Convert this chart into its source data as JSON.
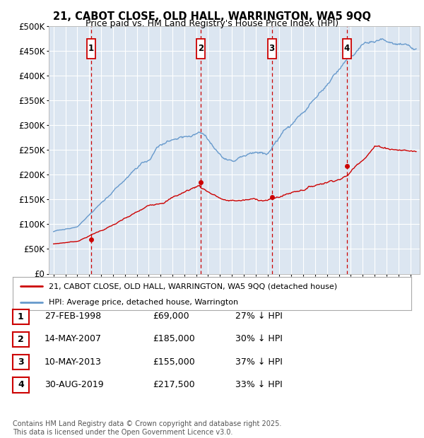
{
  "title": "21, CABOT CLOSE, OLD HALL, WARRINGTON, WA5 9QQ",
  "subtitle": "Price paid vs. HM Land Registry's House Price Index (HPI)",
  "plot_bg_color": "#dce6f1",
  "ylim": [
    0,
    500000
  ],
  "yticks": [
    0,
    50000,
    100000,
    150000,
    200000,
    250000,
    300000,
    350000,
    400000,
    450000,
    500000
  ],
  "ytick_labels": [
    "£0",
    "£50K",
    "£100K",
    "£150K",
    "£200K",
    "£250K",
    "£300K",
    "£350K",
    "£400K",
    "£450K",
    "£500K"
  ],
  "xlim_start": 1994.6,
  "xlim_end": 2025.8,
  "transaction_dates": [
    1998.15,
    2007.37,
    2013.36,
    2019.66
  ],
  "transaction_prices": [
    69000,
    185000,
    155000,
    217500
  ],
  "transaction_labels": [
    "1",
    "2",
    "3",
    "4"
  ],
  "legend_entries": [
    "21, CABOT CLOSE, OLD HALL, WARRINGTON, WA5 9QQ (detached house)",
    "HPI: Average price, detached house, Warrington"
  ],
  "table_rows": [
    [
      "1",
      "27-FEB-1998",
      "£69,000",
      "27% ↓ HPI"
    ],
    [
      "2",
      "14-MAY-2007",
      "£185,000",
      "30% ↓ HPI"
    ],
    [
      "3",
      "10-MAY-2013",
      "£155,000",
      "37% ↓ HPI"
    ],
    [
      "4",
      "30-AUG-2019",
      "£217,500",
      "33% ↓ HPI"
    ]
  ],
  "footer": "Contains HM Land Registry data © Crown copyright and database right 2025.\nThis data is licensed under the Open Government Licence v3.0.",
  "line_color_red": "#cc0000",
  "line_color_blue": "#6699cc",
  "grid_color": "#ffffff",
  "dashed_line_color": "#cc0000"
}
